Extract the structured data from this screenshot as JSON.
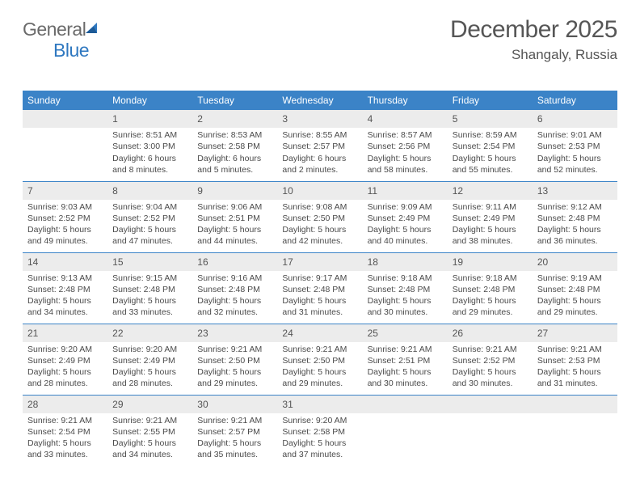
{
  "logo": {
    "general": "General",
    "blue": "Blue"
  },
  "title": "December 2025",
  "location": "Shangaly, Russia",
  "colors": {
    "header_bg": "#3b83c7",
    "header_fg": "#ffffff",
    "daynum_bg": "#ececec",
    "row_divider": "#3b83c7",
    "text": "#4a4a4a",
    "title_color": "#565656",
    "logo_gray": "#6a6a6a",
    "logo_blue": "#2f78c0",
    "background": "#ffffff"
  },
  "dayHeaders": [
    "Sunday",
    "Monday",
    "Tuesday",
    "Wednesday",
    "Thursday",
    "Friday",
    "Saturday"
  ],
  "weeks": [
    [
      {
        "n": "",
        "lines": []
      },
      {
        "n": "1",
        "lines": [
          "Sunrise: 8:51 AM",
          "Sunset: 3:00 PM",
          "Daylight: 6 hours",
          "and 8 minutes."
        ]
      },
      {
        "n": "2",
        "lines": [
          "Sunrise: 8:53 AM",
          "Sunset: 2:58 PM",
          "Daylight: 6 hours",
          "and 5 minutes."
        ]
      },
      {
        "n": "3",
        "lines": [
          "Sunrise: 8:55 AM",
          "Sunset: 2:57 PM",
          "Daylight: 6 hours",
          "and 2 minutes."
        ]
      },
      {
        "n": "4",
        "lines": [
          "Sunrise: 8:57 AM",
          "Sunset: 2:56 PM",
          "Daylight: 5 hours",
          "and 58 minutes."
        ]
      },
      {
        "n": "5",
        "lines": [
          "Sunrise: 8:59 AM",
          "Sunset: 2:54 PM",
          "Daylight: 5 hours",
          "and 55 minutes."
        ]
      },
      {
        "n": "6",
        "lines": [
          "Sunrise: 9:01 AM",
          "Sunset: 2:53 PM",
          "Daylight: 5 hours",
          "and 52 minutes."
        ]
      }
    ],
    [
      {
        "n": "7",
        "lines": [
          "Sunrise: 9:03 AM",
          "Sunset: 2:52 PM",
          "Daylight: 5 hours",
          "and 49 minutes."
        ]
      },
      {
        "n": "8",
        "lines": [
          "Sunrise: 9:04 AM",
          "Sunset: 2:52 PM",
          "Daylight: 5 hours",
          "and 47 minutes."
        ]
      },
      {
        "n": "9",
        "lines": [
          "Sunrise: 9:06 AM",
          "Sunset: 2:51 PM",
          "Daylight: 5 hours",
          "and 44 minutes."
        ]
      },
      {
        "n": "10",
        "lines": [
          "Sunrise: 9:08 AM",
          "Sunset: 2:50 PM",
          "Daylight: 5 hours",
          "and 42 minutes."
        ]
      },
      {
        "n": "11",
        "lines": [
          "Sunrise: 9:09 AM",
          "Sunset: 2:49 PM",
          "Daylight: 5 hours",
          "and 40 minutes."
        ]
      },
      {
        "n": "12",
        "lines": [
          "Sunrise: 9:11 AM",
          "Sunset: 2:49 PM",
          "Daylight: 5 hours",
          "and 38 minutes."
        ]
      },
      {
        "n": "13",
        "lines": [
          "Sunrise: 9:12 AM",
          "Sunset: 2:48 PM",
          "Daylight: 5 hours",
          "and 36 minutes."
        ]
      }
    ],
    [
      {
        "n": "14",
        "lines": [
          "Sunrise: 9:13 AM",
          "Sunset: 2:48 PM",
          "Daylight: 5 hours",
          "and 34 minutes."
        ]
      },
      {
        "n": "15",
        "lines": [
          "Sunrise: 9:15 AM",
          "Sunset: 2:48 PM",
          "Daylight: 5 hours",
          "and 33 minutes."
        ]
      },
      {
        "n": "16",
        "lines": [
          "Sunrise: 9:16 AM",
          "Sunset: 2:48 PM",
          "Daylight: 5 hours",
          "and 32 minutes."
        ]
      },
      {
        "n": "17",
        "lines": [
          "Sunrise: 9:17 AM",
          "Sunset: 2:48 PM",
          "Daylight: 5 hours",
          "and 31 minutes."
        ]
      },
      {
        "n": "18",
        "lines": [
          "Sunrise: 9:18 AM",
          "Sunset: 2:48 PM",
          "Daylight: 5 hours",
          "and 30 minutes."
        ]
      },
      {
        "n": "19",
        "lines": [
          "Sunrise: 9:18 AM",
          "Sunset: 2:48 PM",
          "Daylight: 5 hours",
          "and 29 minutes."
        ]
      },
      {
        "n": "20",
        "lines": [
          "Sunrise: 9:19 AM",
          "Sunset: 2:48 PM",
          "Daylight: 5 hours",
          "and 29 minutes."
        ]
      }
    ],
    [
      {
        "n": "21",
        "lines": [
          "Sunrise: 9:20 AM",
          "Sunset: 2:49 PM",
          "Daylight: 5 hours",
          "and 28 minutes."
        ]
      },
      {
        "n": "22",
        "lines": [
          "Sunrise: 9:20 AM",
          "Sunset: 2:49 PM",
          "Daylight: 5 hours",
          "and 28 minutes."
        ]
      },
      {
        "n": "23",
        "lines": [
          "Sunrise: 9:21 AM",
          "Sunset: 2:50 PM",
          "Daylight: 5 hours",
          "and 29 minutes."
        ]
      },
      {
        "n": "24",
        "lines": [
          "Sunrise: 9:21 AM",
          "Sunset: 2:50 PM",
          "Daylight: 5 hours",
          "and 29 minutes."
        ]
      },
      {
        "n": "25",
        "lines": [
          "Sunrise: 9:21 AM",
          "Sunset: 2:51 PM",
          "Daylight: 5 hours",
          "and 30 minutes."
        ]
      },
      {
        "n": "26",
        "lines": [
          "Sunrise: 9:21 AM",
          "Sunset: 2:52 PM",
          "Daylight: 5 hours",
          "and 30 minutes."
        ]
      },
      {
        "n": "27",
        "lines": [
          "Sunrise: 9:21 AM",
          "Sunset: 2:53 PM",
          "Daylight: 5 hours",
          "and 31 minutes."
        ]
      }
    ],
    [
      {
        "n": "28",
        "lines": [
          "Sunrise: 9:21 AM",
          "Sunset: 2:54 PM",
          "Daylight: 5 hours",
          "and 33 minutes."
        ]
      },
      {
        "n": "29",
        "lines": [
          "Sunrise: 9:21 AM",
          "Sunset: 2:55 PM",
          "Daylight: 5 hours",
          "and 34 minutes."
        ]
      },
      {
        "n": "30",
        "lines": [
          "Sunrise: 9:21 AM",
          "Sunset: 2:57 PM",
          "Daylight: 5 hours",
          "and 35 minutes."
        ]
      },
      {
        "n": "31",
        "lines": [
          "Sunrise: 9:20 AM",
          "Sunset: 2:58 PM",
          "Daylight: 5 hours",
          "and 37 minutes."
        ]
      },
      {
        "n": "",
        "lines": []
      },
      {
        "n": "",
        "lines": []
      },
      {
        "n": "",
        "lines": []
      }
    ]
  ]
}
